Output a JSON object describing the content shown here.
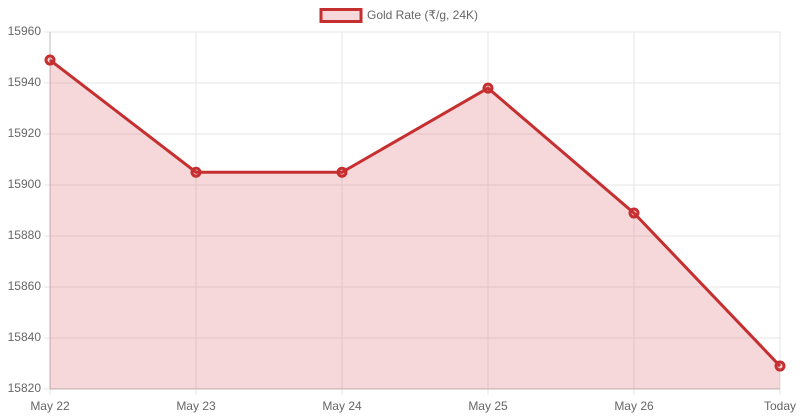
{
  "chart_data": {
    "type": "line",
    "fill": true,
    "categories": [
      "May 22",
      "May 23",
      "May 24",
      "May 25",
      "May 26",
      "Today"
    ],
    "series": [
      {
        "name": "Gold Rate (₹/g, 24K)",
        "color": "#c62f2f",
        "fill_color": "rgba(210,60,70,0.2)",
        "values": [
          15949,
          15905,
          15905,
          15938,
          15889,
          15829
        ]
      }
    ],
    "ylim": [
      15820,
      15960
    ],
    "yticks": [
      15820,
      15840,
      15860,
      15880,
      15900,
      15920,
      15940,
      15960
    ],
    "grid": true,
    "legend": "top"
  }
}
